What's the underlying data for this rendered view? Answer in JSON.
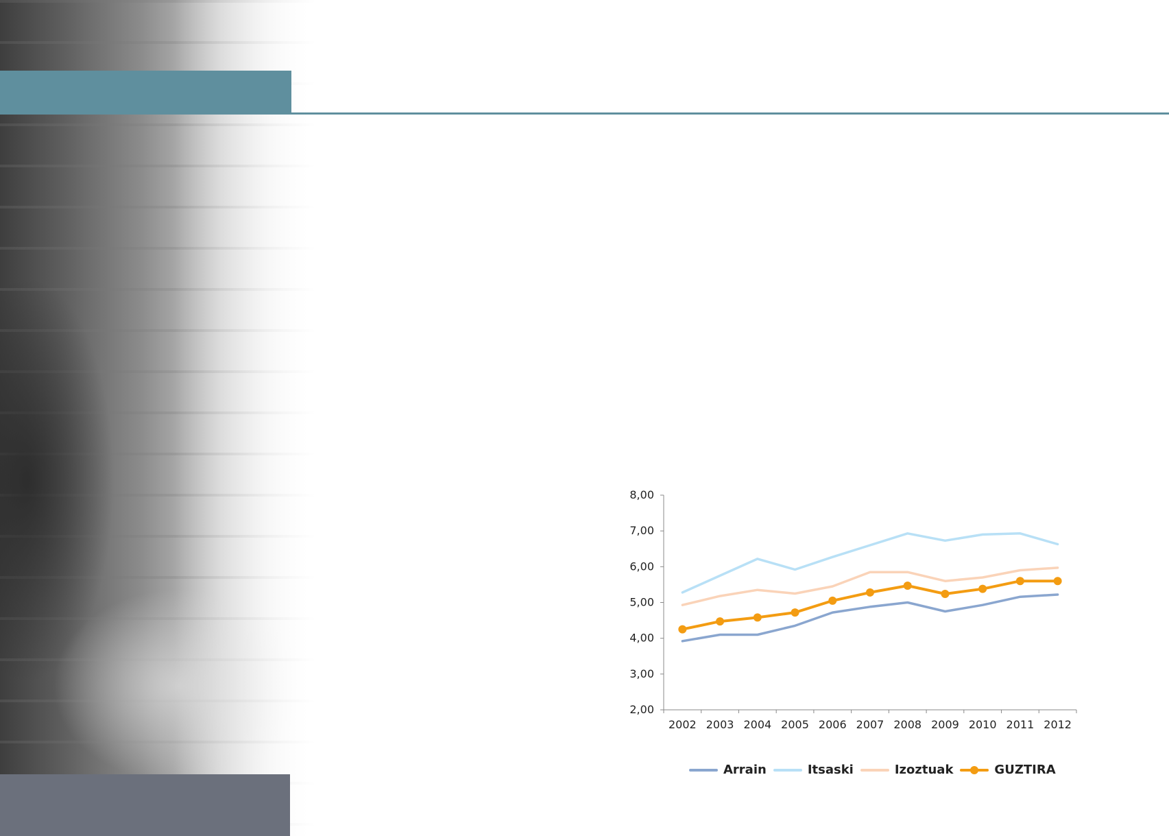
{
  "chart_data": {
    "type": "line",
    "x": [
      "2002",
      "2003",
      "2004",
      "2005",
      "2006",
      "2007",
      "2008",
      "2009",
      "2010",
      "2011",
      "2012"
    ],
    "ylim": [
      2,
      8
    ],
    "yticks": [
      "2,00",
      "3,00",
      "4,00",
      "5,00",
      "6,00",
      "7,00",
      "8,00"
    ],
    "grid": false,
    "legend_position": "bottom",
    "series": [
      {
        "name": "Arrain",
        "color": "#8aa6cf",
        "markers": false,
        "values": [
          3.92,
          4.1,
          4.1,
          4.35,
          4.72,
          4.88,
          5.0,
          4.75,
          4.93,
          5.16,
          5.22
        ]
      },
      {
        "name": "Itsaski",
        "color": "#b8e0f6",
        "markers": false,
        "values": [
          5.28,
          5.75,
          6.22,
          5.92,
          6.27,
          6.6,
          6.93,
          6.73,
          6.9,
          6.93,
          6.63
        ]
      },
      {
        "name": "Izoztuak",
        "color": "#fad3b8",
        "markers": false,
        "values": [
          4.93,
          5.18,
          5.35,
          5.25,
          5.45,
          5.85,
          5.85,
          5.6,
          5.7,
          5.9,
          5.97
        ]
      },
      {
        "name": "GUZTIRA",
        "color": "#f39c12",
        "markers": true,
        "values": [
          4.25,
          4.47,
          4.58,
          4.72,
          5.05,
          5.28,
          5.47,
          5.24,
          5.38,
          5.6,
          5.6
        ]
      }
    ]
  },
  "colors": {
    "accent_band": "#5f8f9e",
    "footer_band": "#6b707c",
    "axis": "#888888"
  }
}
